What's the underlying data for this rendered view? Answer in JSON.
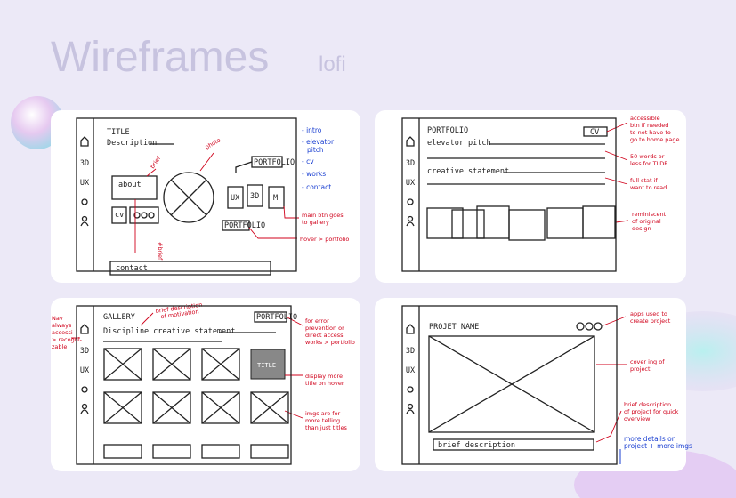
{
  "header": {
    "title": "Wireframes",
    "subtitle": "lofi"
  },
  "sidebar": [
    "3D",
    "UX"
  ],
  "panels": [
    {
      "title": "TITLE",
      "description": "Description",
      "about": "about",
      "cv": "cv",
      "contact": "contact",
      "portfolio_button": "PORTFOLIO",
      "buttons": [
        "UX",
        "3D",
        "M"
      ],
      "hover_button": "PORTFOLIO",
      "notes": {
        "photo": "photo",
        "brief": "brief",
        "brief_bottom": "#brief",
        "main_button": [
          "main btn goes",
          "to gallery"
        ],
        "hover": [
          "hover > portfolio"
        ]
      },
      "outline": [
        "- intro",
        "- elevator",
        "pitch",
        "- cv",
        "- works",
        "- contact"
      ]
    },
    {
      "title": "PORTFOLIO",
      "cv": "CV",
      "elevator_pitch": "elevator pitch",
      "creative_statement": "creative statement",
      "notes": {
        "accessible": [
          "accessible",
          "btn if needed",
          "to not have to",
          "go to home page"
        ],
        "words": [
          "50 words or",
          "less for TLDR"
        ],
        "full": [
          "full stat if",
          "want to read"
        ],
        "reminiscent": [
          "reminiscent",
          "of original",
          "design"
        ]
      }
    },
    {
      "title": "GALLERY",
      "statement": "Discipline creative statement",
      "portfolio_button": "PORTFOLIO",
      "hover_title": "TITLE",
      "notes": {
        "motivation": [
          "brief description",
          "of motivation"
        ],
        "error": [
          "for error",
          "prevention or",
          "direct access",
          "works > portfolio"
        ],
        "display": [
          "display more",
          "title on hover"
        ],
        "imgs": [
          "imgs are for",
          "more telling",
          "than just titles"
        ],
        "nav": [
          "Nav",
          "always",
          "accessi-",
          "> recogni-",
          "zable"
        ]
      }
    },
    {
      "title": "PROJET NAME",
      "brief": "brief description",
      "notes": {
        "apps": [
          "apps used to",
          "create project"
        ],
        "cover": [
          "cover ing of",
          "project"
        ],
        "brief": [
          "brief description",
          "of project for quick",
          "overview"
        ],
        "more": [
          "more details on",
          "project + more imgs"
        ]
      }
    }
  ]
}
